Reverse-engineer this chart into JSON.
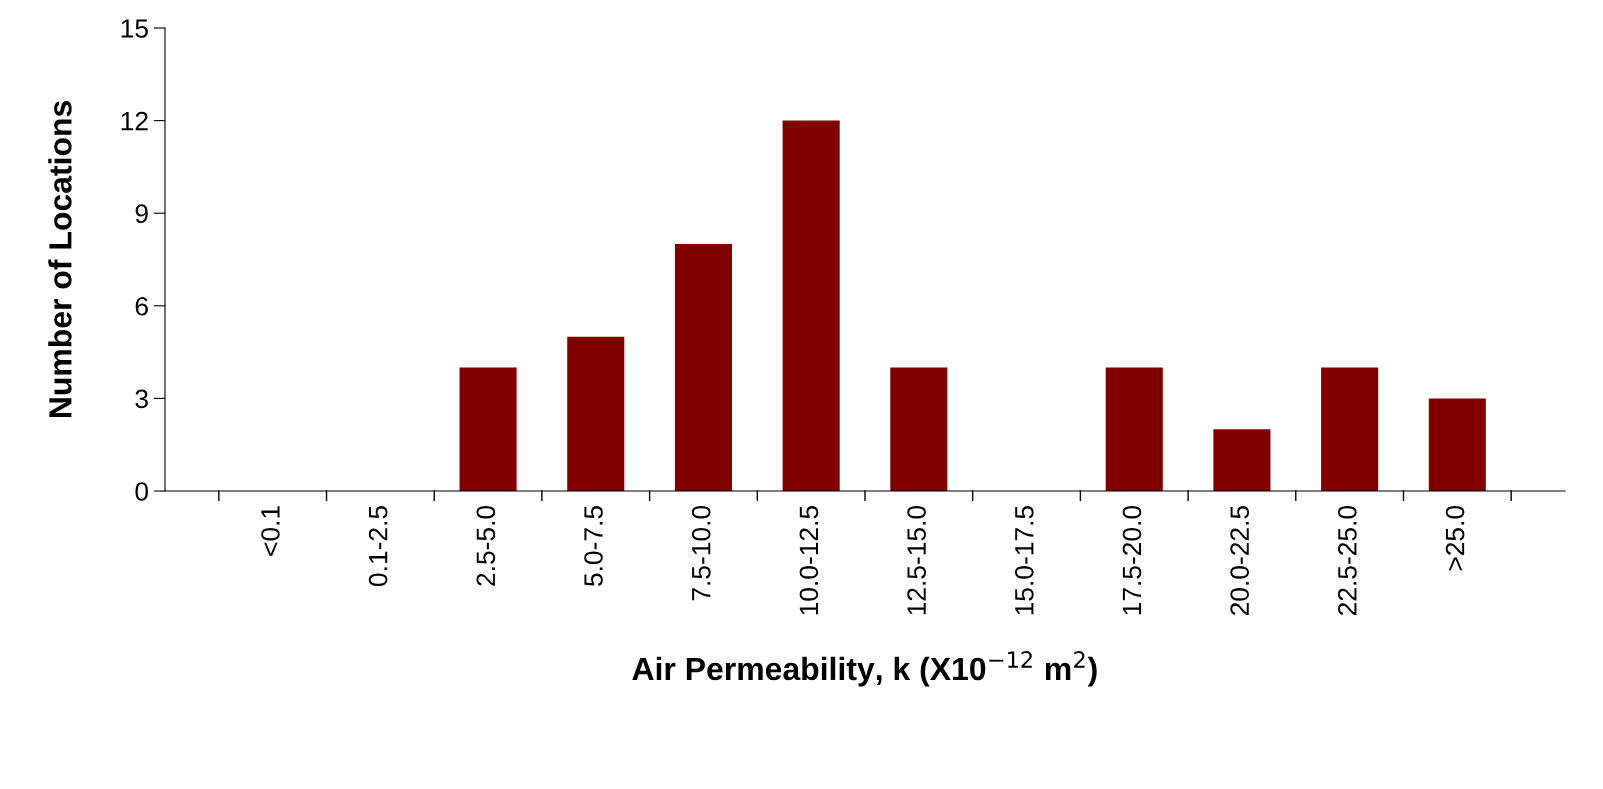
{
  "chart_data": {
    "type": "bar",
    "categories": [
      "<0.1",
      "0.1-2.5",
      "2.5-5.0",
      "5.0-7.5",
      "7.5-10.0",
      "10.0-12.5",
      "12.5-15.0",
      "15.0-17.5",
      "17.5-20.0",
      "20.0-22.5",
      "22.5-25.0",
      ">25.0"
    ],
    "values": [
      0,
      0,
      4,
      5,
      8,
      12,
      4,
      0,
      4,
      2,
      4,
      3
    ],
    "color": "#800000",
    "xlabel": "Air Permeability, k (X10$^{−12}$ m$^{2}$)",
    "ylabel": "Number of Locations",
    "ylim": [
      0,
      15
    ],
    "yticks": [
      0,
      3,
      6,
      9,
      12,
      15
    ],
    "grid": false
  }
}
